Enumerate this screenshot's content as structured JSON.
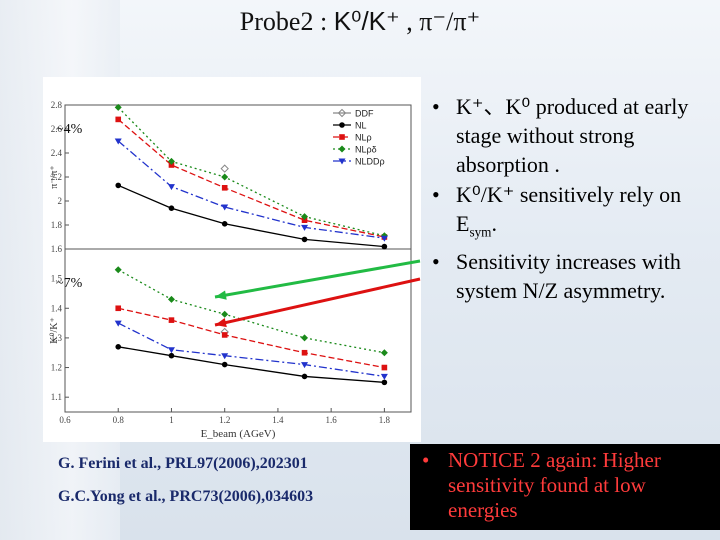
{
  "slide": {
    "title_prefix": "Probe2 :  ",
    "title_formula": "K⁰/K⁺",
    "title_sep": " , ",
    "title_formula2": "π⁻/π⁺"
  },
  "bullets": {
    "b1": "K⁺、K⁰ produced at early stage without strong absorption .",
    "b2": "K⁰/K⁺ sensitively rely on E",
    "b2_sub": "sym",
    "b2_end": ".",
    "b3": "Sensitivity increases with system N/Z asymmetry."
  },
  "notice": {
    "text": "NOTICE 2 again:  Higher sensitivity found at low energies"
  },
  "references": {
    "ref1": "G. Ferini et al.,  PRL97(2006),202301",
    "ref2": "G.C.Yong et al., PRC73(2006),034603"
  },
  "annotations": {
    "top_pct": "~4%",
    "bottom_pct": "~7%"
  },
  "chart_data": [
    {
      "type": "line",
      "panel": "top",
      "ylabel": "π⁻/π⁺",
      "xlim": [
        0.6,
        1.9
      ],
      "ylim": [
        1.6,
        2.8
      ],
      "yticks": [
        "1.6",
        "1.8",
        "2",
        "2.2",
        "2.4",
        "2.6",
        "2.8"
      ],
      "legend": [
        "DDF",
        "NL",
        "NLρ",
        "NLρδ",
        "NLDDρ"
      ],
      "legend_position": "top-right",
      "series": [
        {
          "name": "DDF",
          "x": [
            1.2
          ],
          "values": [
            2.27
          ]
        },
        {
          "name": "NL",
          "x": [
            0.8,
            1.0,
            1.2,
            1.5,
            1.8
          ],
          "values": [
            2.13,
            1.94,
            1.81,
            1.68,
            1.62
          ]
        },
        {
          "name": "NLρ",
          "x": [
            0.8,
            1.0,
            1.2,
            1.5,
            1.8
          ],
          "values": [
            2.68,
            2.3,
            2.11,
            1.84,
            1.7
          ]
        },
        {
          "name": "NLρδ",
          "x": [
            0.8,
            1.0,
            1.2,
            1.5,
            1.8
          ],
          "values": [
            2.78,
            2.33,
            2.2,
            1.87,
            1.71
          ]
        },
        {
          "name": "NLDDρ",
          "x": [
            0.8,
            1.0,
            1.2,
            1.5,
            1.8
          ],
          "values": [
            2.5,
            2.12,
            1.95,
            1.78,
            1.69
          ]
        }
      ]
    },
    {
      "type": "line",
      "panel": "bottom",
      "ylabel": "K⁰/K⁺",
      "xlabel": "E_beam (AGeV)",
      "xlim": [
        0.6,
        1.9
      ],
      "ylim": [
        1.05,
        1.6
      ],
      "xticks": [
        "0.6",
        "0.8",
        "1",
        "1.2",
        "1.4",
        "1.6",
        "1.8"
      ],
      "yticks": [
        "1.1",
        "1.2",
        "1.3",
        "1.4",
        "1.5"
      ],
      "series": [
        {
          "name": "DDF",
          "x": [
            1.2
          ],
          "values": [
            1.32
          ]
        },
        {
          "name": "NL",
          "x": [
            0.8,
            1.0,
            1.2,
            1.5,
            1.8
          ],
          "values": [
            1.27,
            1.24,
            1.21,
            1.17,
            1.15
          ]
        },
        {
          "name": "NLρ",
          "x": [
            0.8,
            1.0,
            1.2,
            1.5,
            1.8
          ],
          "values": [
            1.4,
            1.36,
            1.31,
            1.25,
            1.2
          ]
        },
        {
          "name": "NLρδ",
          "x": [
            0.8,
            1.0,
            1.2,
            1.5,
            1.8
          ],
          "values": [
            1.53,
            1.43,
            1.38,
            1.3,
            1.25
          ]
        },
        {
          "name": "NLDDρ",
          "x": [
            0.8,
            1.0,
            1.2,
            1.5,
            1.8
          ],
          "values": [
            1.35,
            1.26,
            1.24,
            1.21,
            1.17
          ]
        }
      ]
    }
  ],
  "colors": {
    "nl": "#000000",
    "nlrho": "#dd1111",
    "nlrhodelta": "#1a8a1a",
    "nlddrho": "#2233cc",
    "ddf": "#888888",
    "arrow_green": "#22bb44",
    "arrow_red": "#dd1111"
  }
}
